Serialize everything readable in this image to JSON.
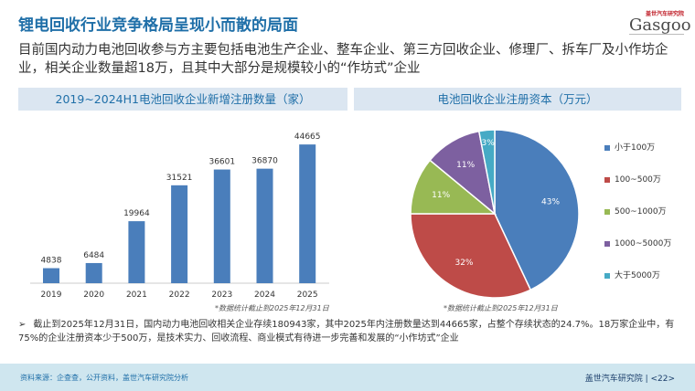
{
  "title": "锂电回收行业竞争格局呈现小而散的局面",
  "logo": {
    "top": "盖世汽车研究院",
    "main": "Gasgoo"
  },
  "intro": "目前国内动力电池回收参与方主要包括电池生产企业、整车企业、第三方回收企业、修理厂、拆车厂及小作坊企业，相关企业数量超18万，且其中大部分是规模较小的“作坊式”企业",
  "bullet": "截止到2025年12月31日，国内动力电池回收相关企业存续180943家，其中2025年内注册数量达到44665家，占整个存续状态的24.7%。18万家企业中，有75%的企业注册资本少于500万，是技术实力、回收流程、商业模式有待进一步完善和发展的“小作坊式”企业",
  "footer": {
    "source": "资料来源：企查查，公开资料，盖世汽车研究院分析",
    "page": "盖世汽车研究院 | <22>"
  },
  "chart_data": [
    {
      "type": "bar",
      "title": "2019~2024H1电池回收企业新增注册数量（家）",
      "categories": [
        "2019",
        "2020",
        "2021",
        "2022",
        "2023",
        "2024",
        "2025"
      ],
      "values": [
        4838,
        6484,
        19964,
        31521,
        36601,
        36870,
        44665
      ],
      "ylim": [
        0,
        50000
      ],
      "color": "#4a7ebb",
      "note": "*数据统计截止到2025年12月31日"
    },
    {
      "type": "pie",
      "title": "电池回收企业注册资本（万元）",
      "labels": [
        "小于100万",
        "100~500万",
        "500~1000万",
        "1000~5000万",
        "大于5000万"
      ],
      "values": [
        43,
        32,
        11,
        11,
        3
      ],
      "value_labels": [
        "43%",
        "32%",
        "11%",
        "11%",
        "3%"
      ],
      "colors": [
        "#4a7ebb",
        "#be4b48",
        "#98b954",
        "#7d60a0",
        "#46aac5"
      ],
      "legend": "right",
      "note": "*数据统计截止到2025年12月31日"
    }
  ]
}
